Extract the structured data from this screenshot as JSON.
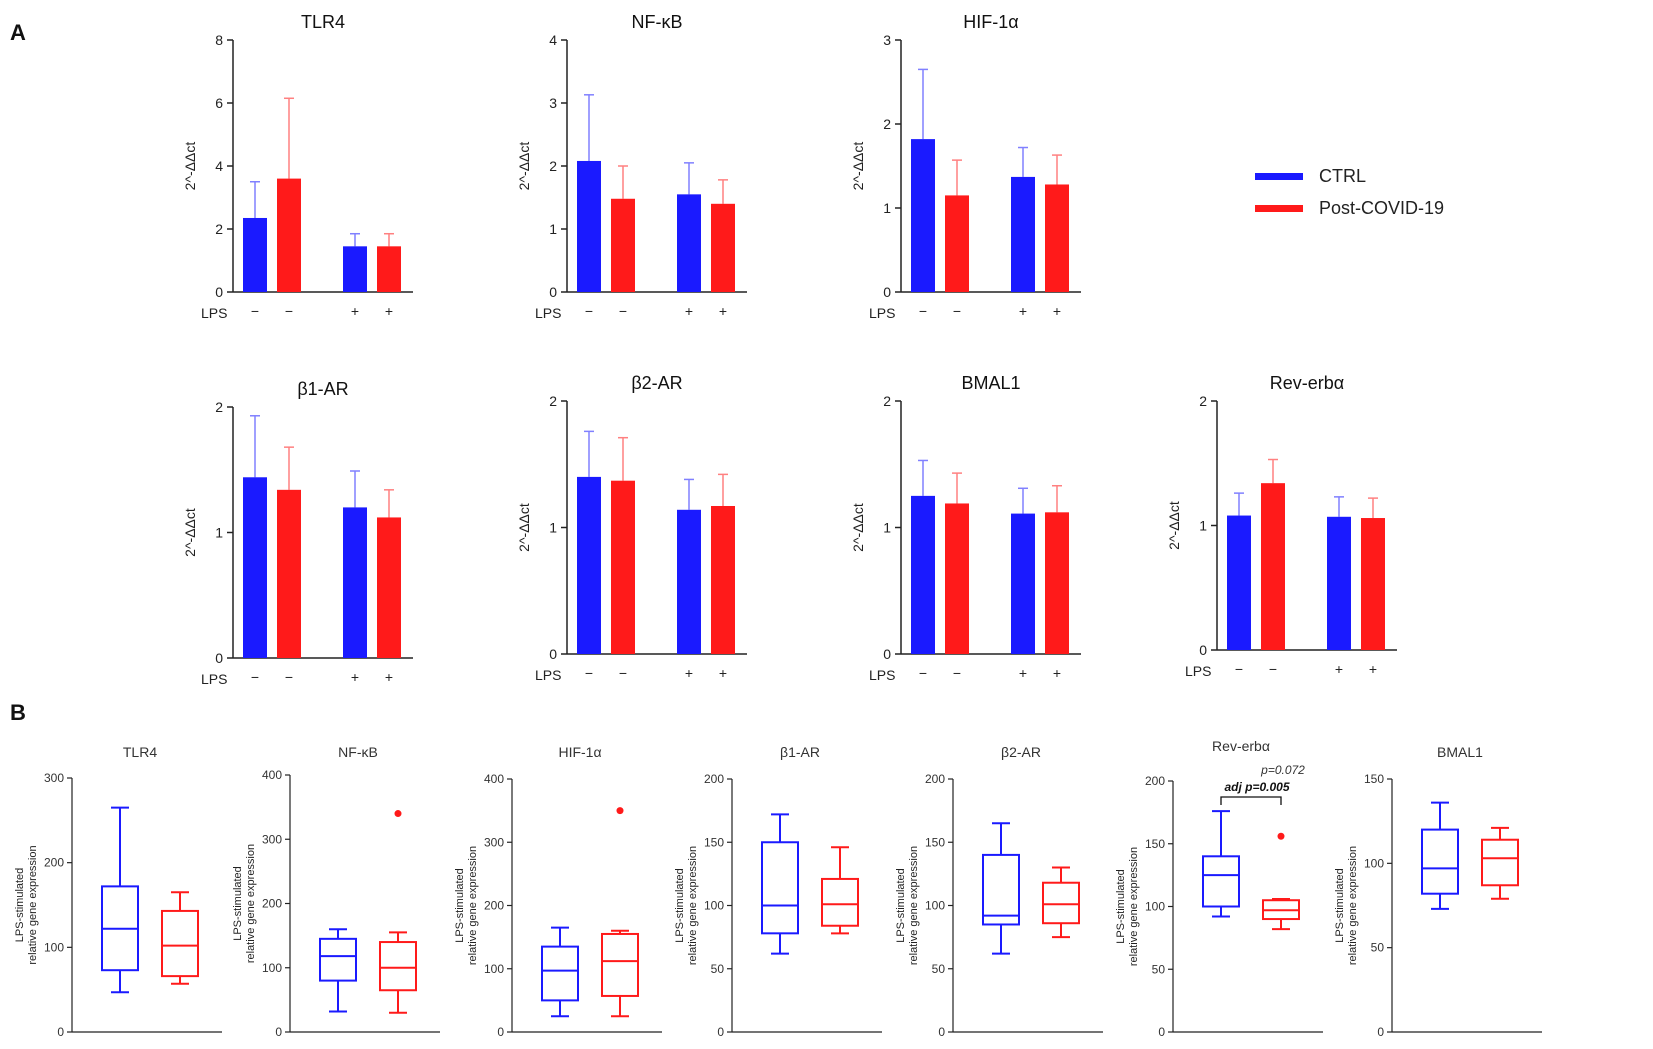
{
  "panels": {
    "a": "A",
    "b": "B"
  },
  "legend": {
    "items": [
      {
        "label": "CTRL",
        "color": "#1a1aff"
      },
      {
        "label": "Post-COVID-19",
        "color": "#ff1a1a"
      }
    ]
  },
  "colors": {
    "ctrl": "#1a1aff",
    "post": "#ff1a1a",
    "ctrl_err": "#8080ff",
    "post_err": "#ff8080",
    "axis": "#222222"
  },
  "lps": {
    "label": "LPS",
    "minus": "−",
    "plus": "+"
  },
  "chart_data": [
    {
      "id": "a-tlr4",
      "panel": "A",
      "type": "bar",
      "title": "TLR4",
      "ylabel": "2^-ΔΔct",
      "ylim": [
        0,
        8
      ],
      "yticks": [
        0,
        2,
        4,
        6,
        8
      ],
      "categories": [
        "LPS −",
        "LPS +"
      ],
      "series": [
        {
          "name": "CTRL",
          "values": [
            2.35,
            1.45
          ],
          "error": [
            1.15,
            0.4
          ]
        },
        {
          "name": "Post-COVID-19",
          "values": [
            3.6,
            1.45
          ],
          "error": [
            2.55,
            0.4
          ]
        }
      ]
    },
    {
      "id": "a-nfkb",
      "panel": "A",
      "type": "bar",
      "title": "NF-κB",
      "ylabel": "2^-ΔΔct",
      "ylim": [
        0,
        4
      ],
      "yticks": [
        0,
        1,
        2,
        3,
        4
      ],
      "categories": [
        "LPS −",
        "LPS +"
      ],
      "series": [
        {
          "name": "CTRL",
          "values": [
            2.08,
            1.55
          ],
          "error": [
            1.05,
            0.5
          ]
        },
        {
          "name": "Post-COVID-19",
          "values": [
            1.48,
            1.4
          ],
          "error": [
            0.52,
            0.38
          ]
        }
      ]
    },
    {
      "id": "a-hif",
      "panel": "A",
      "type": "bar",
      "title": "HIF-1α",
      "ylabel": "2^-ΔΔct",
      "ylim": [
        0,
        3
      ],
      "yticks": [
        0,
        1,
        2,
        3
      ],
      "categories": [
        "LPS −",
        "LPS +"
      ],
      "series": [
        {
          "name": "CTRL",
          "values": [
            1.82,
            1.37
          ],
          "error": [
            0.83,
            0.35
          ]
        },
        {
          "name": "Post-COVID-19",
          "values": [
            1.15,
            1.28
          ],
          "error": [
            0.42,
            0.35
          ]
        }
      ]
    },
    {
      "id": "a-b1ar",
      "panel": "A",
      "type": "bar",
      "title": "β1-AR",
      "ylabel": "2^-ΔΔct",
      "ylim": [
        0,
        2
      ],
      "yticks": [
        0,
        1,
        2
      ],
      "categories": [
        "LPS −",
        "LPS +"
      ],
      "series": [
        {
          "name": "CTRL",
          "values": [
            1.44,
            1.2
          ],
          "error": [
            0.49,
            0.29
          ]
        },
        {
          "name": "Post-COVID-19",
          "values": [
            1.34,
            1.12
          ],
          "error": [
            0.34,
            0.22
          ]
        }
      ]
    },
    {
      "id": "a-b2ar",
      "panel": "A",
      "type": "bar",
      "title": "β2-AR",
      "ylabel": "2^-ΔΔct",
      "ylim": [
        0,
        2
      ],
      "yticks": [
        0,
        1,
        2
      ],
      "categories": [
        "LPS −",
        "LPS +"
      ],
      "series": [
        {
          "name": "CTRL",
          "values": [
            1.4,
            1.14
          ],
          "error": [
            0.36,
            0.24
          ]
        },
        {
          "name": "Post-COVID-19",
          "values": [
            1.37,
            1.17
          ],
          "error": [
            0.34,
            0.25
          ]
        }
      ]
    },
    {
      "id": "a-bmal1",
      "panel": "A",
      "type": "bar",
      "title": "BMAL1",
      "ylabel": "2^-ΔΔct",
      "ylim": [
        0,
        2
      ],
      "yticks": [
        0,
        1,
        2
      ],
      "categories": [
        "LPS −",
        "LPS +"
      ],
      "series": [
        {
          "name": "CTRL",
          "values": [
            1.25,
            1.11
          ],
          "error": [
            0.28,
            0.2
          ]
        },
        {
          "name": "Post-COVID-19",
          "values": [
            1.19,
            1.12
          ],
          "error": [
            0.24,
            0.21
          ]
        }
      ]
    },
    {
      "id": "a-reverb",
      "panel": "A",
      "type": "bar",
      "title": "Rev-erbα",
      "ylabel": "2^-ΔΔct",
      "ylim": [
        0,
        2
      ],
      "yticks": [
        0,
        1,
        2
      ],
      "categories": [
        "LPS −",
        "LPS +"
      ],
      "series": [
        {
          "name": "CTRL",
          "values": [
            1.08,
            1.07
          ],
          "error": [
            0.18,
            0.16
          ]
        },
        {
          "name": "Post-COVID-19",
          "values": [
            1.34,
            1.06
          ],
          "error": [
            0.19,
            0.16
          ]
        }
      ]
    },
    {
      "id": "b-tlr4",
      "panel": "B",
      "type": "box",
      "title": "TLR4",
      "ylabel": [
        "LPS-stimulated",
        "relative gene expression"
      ],
      "ylim": [
        0,
        300
      ],
      "yticks": [
        0,
        100,
        200,
        300
      ],
      "series": [
        {
          "name": "CTRL",
          "min": 47,
          "q1": 73,
          "median": 122,
          "q3": 172,
          "max": 265,
          "outliers": []
        },
        {
          "name": "Post-COVID-19",
          "min": 57,
          "q1": 66,
          "median": 102,
          "q3": 143,
          "max": 165,
          "outliers": []
        }
      ]
    },
    {
      "id": "b-nfkb",
      "panel": "B",
      "type": "box",
      "title": "NF-κB",
      "ylabel": [
        "LPS-stimulated",
        "relative gene expression"
      ],
      "ylim": [
        0,
        400
      ],
      "yticks": [
        0,
        100,
        200,
        300,
        400
      ],
      "series": [
        {
          "name": "CTRL",
          "min": 32,
          "q1": 80,
          "median": 118,
          "q3": 145,
          "max": 160,
          "outliers": []
        },
        {
          "name": "Post-COVID-19",
          "min": 30,
          "q1": 65,
          "median": 100,
          "q3": 140,
          "max": 155,
          "outliers": [
            340
          ]
        }
      ]
    },
    {
      "id": "b-hif",
      "panel": "B",
      "type": "box",
      "title": "HIF-1α",
      "ylabel": [
        "LPS-stimulated",
        "relative gene expression"
      ],
      "ylim": [
        0,
        400
      ],
      "yticks": [
        0,
        100,
        200,
        300,
        400
      ],
      "series": [
        {
          "name": "CTRL",
          "min": 25,
          "q1": 50,
          "median": 97,
          "q3": 135,
          "max": 165,
          "outliers": []
        },
        {
          "name": "Post-COVID-19",
          "min": 25,
          "q1": 57,
          "median": 112,
          "q3": 155,
          "max": 160,
          "outliers": [
            350
          ]
        }
      ]
    },
    {
      "id": "b-b1ar",
      "panel": "B",
      "type": "box",
      "title": "β1-AR",
      "ylabel": [
        "LPS-stimulated",
        "relative gene expression"
      ],
      "ylim": [
        0,
        200
      ],
      "yticks": [
        0,
        50,
        100,
        150,
        200
      ],
      "series": [
        {
          "name": "CTRL",
          "min": 62,
          "q1": 78,
          "median": 100,
          "q3": 150,
          "max": 172,
          "outliers": []
        },
        {
          "name": "Post-COVID-19",
          "min": 78,
          "q1": 84,
          "median": 101,
          "q3": 121,
          "max": 146,
          "outliers": []
        }
      ]
    },
    {
      "id": "b-b2ar",
      "panel": "B",
      "type": "box",
      "title": "β2-AR",
      "ylabel": [
        "LPS-stimulated",
        "relative gene expression"
      ],
      "ylim": [
        0,
        200
      ],
      "yticks": [
        0,
        50,
        100,
        150,
        200
      ],
      "series": [
        {
          "name": "CTRL",
          "min": 62,
          "q1": 85,
          "median": 92,
          "q3": 140,
          "max": 165,
          "outliers": []
        },
        {
          "name": "Post-COVID-19",
          "min": 75,
          "q1": 86,
          "median": 101,
          "q3": 118,
          "max": 130,
          "outliers": []
        }
      ]
    },
    {
      "id": "b-reverb",
      "panel": "B",
      "type": "box",
      "title": "Rev-erbα",
      "ylabel": [
        "LPS-stimulated",
        "relative gene expression"
      ],
      "ylim": [
        0,
        200
      ],
      "yticks": [
        0,
        50,
        100,
        150,
        200
      ],
      "annotation": {
        "p": "p=0.072",
        "adj": "adj p=0.005"
      },
      "series": [
        {
          "name": "CTRL",
          "min": 92,
          "q1": 100,
          "median": 125,
          "q3": 140,
          "max": 176,
          "outliers": []
        },
        {
          "name": "Post-COVID-19",
          "min": 82,
          "q1": 90,
          "median": 97,
          "q3": 105,
          "max": 106,
          "outliers": [
            156
          ]
        }
      ]
    },
    {
      "id": "b-bmal1",
      "panel": "B",
      "type": "box",
      "title": "BMAL1",
      "ylabel": [
        "LPS-stimulated",
        "relative gene expression"
      ],
      "ylim": [
        0,
        150
      ],
      "yticks": [
        0,
        50,
        100,
        150
      ],
      "series": [
        {
          "name": "CTRL",
          "min": 73,
          "q1": 82,
          "median": 97,
          "q3": 120,
          "max": 136,
          "outliers": []
        },
        {
          "name": "Post-COVID-19",
          "min": 79,
          "q1": 87,
          "median": 103,
          "q3": 114,
          "max": 121,
          "outliers": []
        }
      ]
    }
  ]
}
